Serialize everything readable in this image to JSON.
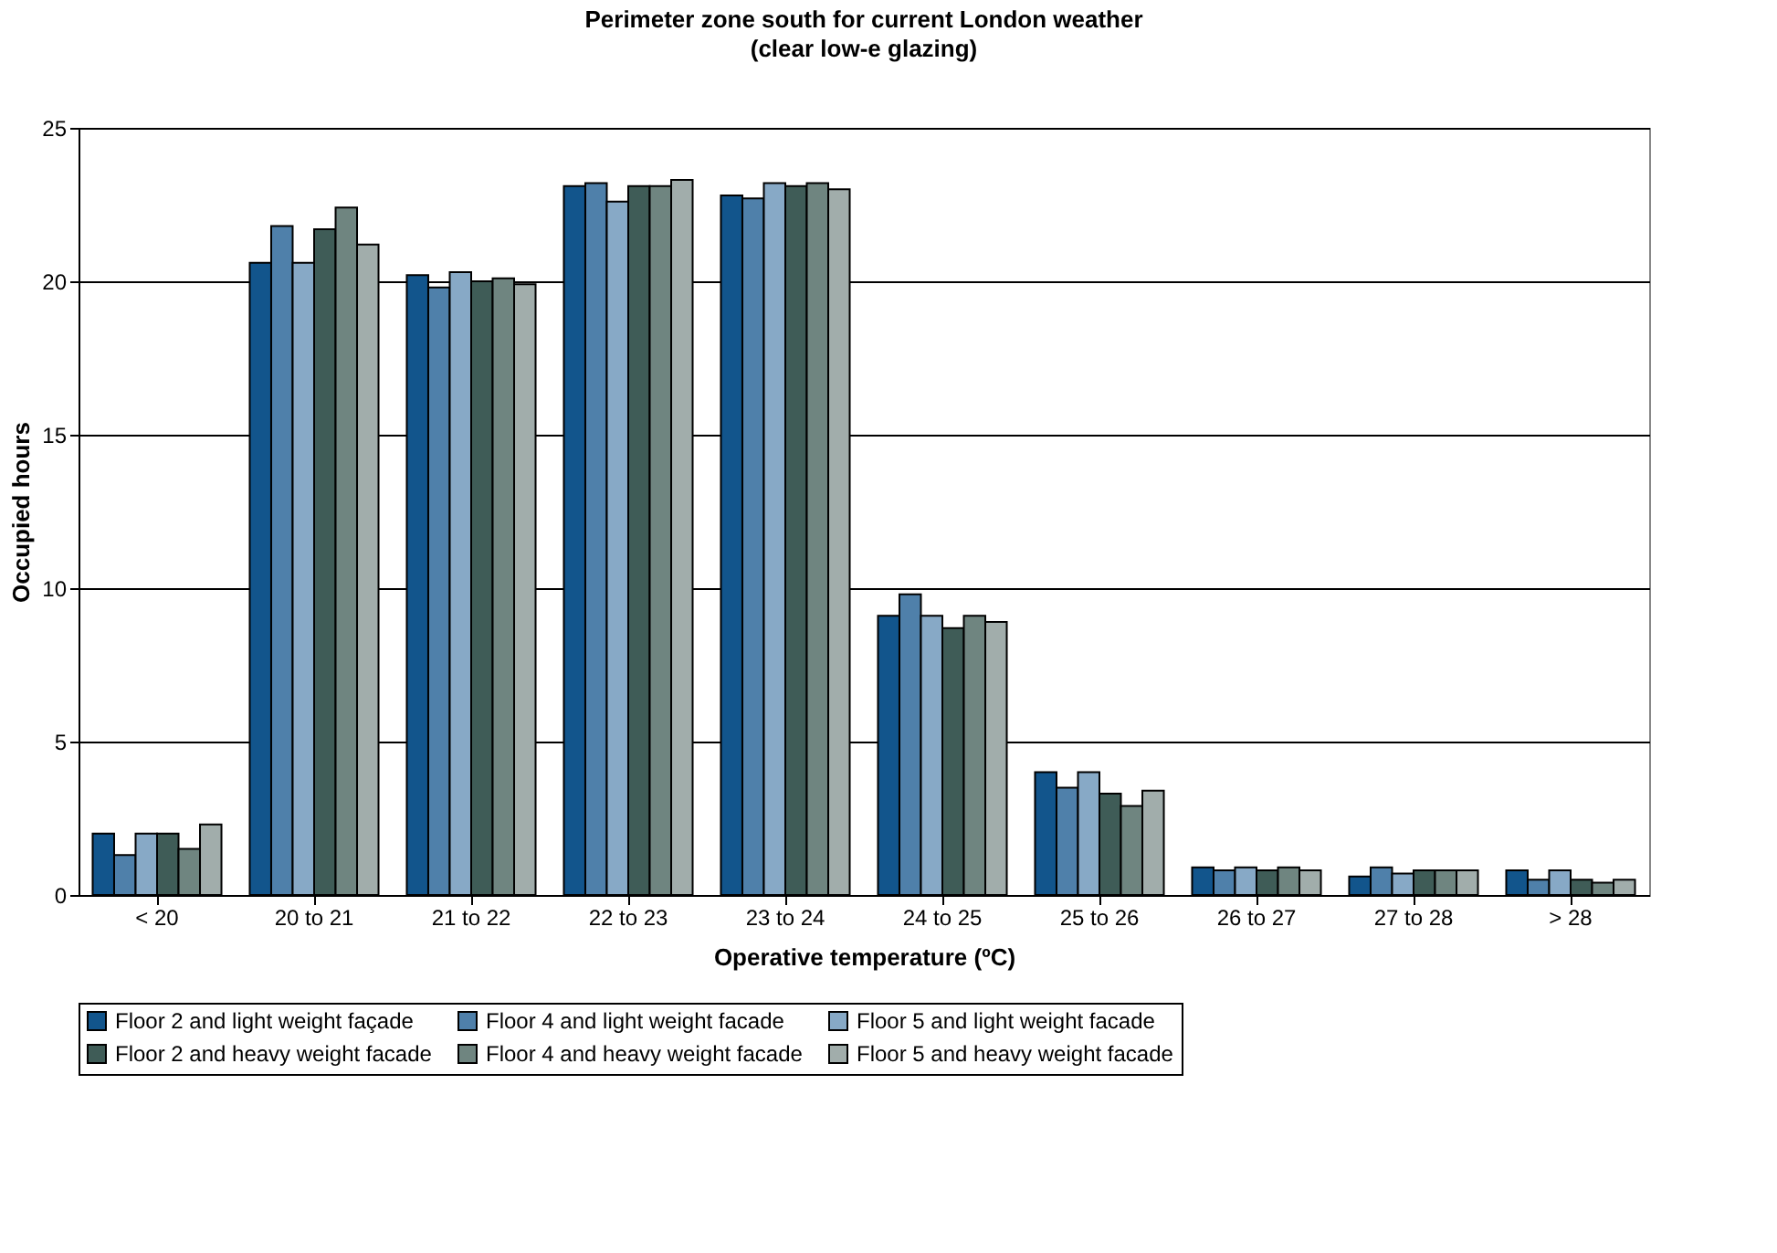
{
  "chart_data": {
    "type": "bar",
    "title": "Perimeter zone south for current London weather",
    "subtitle": "(clear low-e glazing)",
    "xlabel": "Operative temperature (ºC)",
    "ylabel": "Occupied hours",
    "categories": [
      "< 20",
      "20 to 21",
      "21 to 22",
      "22 to 23",
      "23 to 24",
      "24 to 25",
      "25 to 26",
      "26 to 27",
      "27 to 28",
      "> 28"
    ],
    "series": [
      {
        "name": "Floor 2 and light weight façade",
        "color": "#12558c",
        "values": [
          2.0,
          20.6,
          20.2,
          23.1,
          22.8,
          9.1,
          4.0,
          0.9,
          0.6,
          0.8
        ]
      },
      {
        "name": "Floor 4 and light weight facade",
        "color": "#4f80aa",
        "values": [
          1.3,
          21.8,
          19.8,
          23.2,
          22.7,
          9.8,
          3.5,
          0.8,
          0.9,
          0.5
        ]
      },
      {
        "name": "Floor 5 and light weight facade",
        "color": "#87a9c6",
        "values": [
          2.0,
          20.6,
          20.3,
          22.6,
          23.2,
          9.1,
          4.0,
          0.9,
          0.7,
          0.8
        ]
      },
      {
        "name": "Floor 2 and heavy weight facade",
        "color": "#3f5c57",
        "values": [
          2.0,
          21.7,
          20.0,
          23.1,
          23.1,
          8.7,
          3.3,
          0.8,
          0.8,
          0.5
        ]
      },
      {
        "name": "Floor 4 and heavy weight facade",
        "color": "#6f8580",
        "values": [
          1.5,
          22.4,
          20.1,
          23.1,
          23.2,
          9.1,
          2.9,
          0.9,
          0.8,
          0.4
        ]
      },
      {
        "name": "Floor 5 and heavy weight facade",
        "color": "#a1adab",
        "values": [
          2.3,
          21.2,
          19.9,
          23.3,
          23.0,
          8.9,
          3.4,
          0.8,
          0.8,
          0.5
        ]
      }
    ],
    "ylim": [
      0,
      25
    ],
    "yticks": [
      0,
      5,
      10,
      15,
      20,
      25
    ],
    "grid": "y",
    "legend": "bottom"
  }
}
